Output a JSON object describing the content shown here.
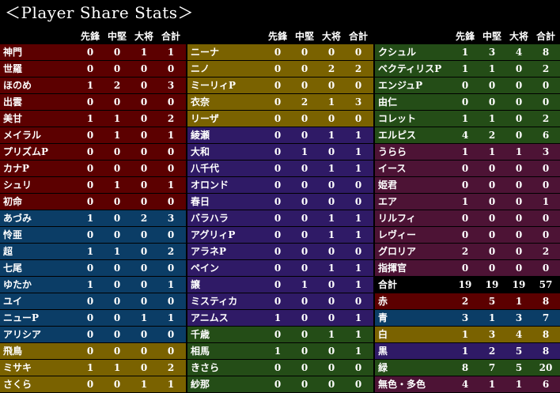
{
  "title": "＜Player Share Stats＞",
  "headers": [
    "先鋒",
    "中堅",
    "大将",
    "合計"
  ],
  "colors": {
    "red": "#5c0000",
    "blue": "#0b3d66",
    "yellow": "#7a6200",
    "purple": "#2f1a66",
    "green": "#244d17",
    "magenta": "#4d1335",
    "black": "#000000"
  },
  "panels": [
    {
      "rows": [
        {
          "name": "神門",
          "v": [
            "0",
            "0",
            "1",
            "1"
          ],
          "color": "red"
        },
        {
          "name": "世羅",
          "v": [
            "0",
            "0",
            "0",
            "0"
          ],
          "color": "red"
        },
        {
          "name": "ほのめ",
          "v": [
            "1",
            "2",
            "0",
            "3"
          ],
          "color": "red"
        },
        {
          "name": "出雲",
          "v": [
            "0",
            "0",
            "0",
            "0"
          ],
          "color": "red"
        },
        {
          "name": "美甘",
          "v": [
            "1",
            "1",
            "0",
            "2"
          ],
          "color": "red"
        },
        {
          "name": "メイラル",
          "v": [
            "0",
            "1",
            "0",
            "1"
          ],
          "color": "red"
        },
        {
          "name": "プリズムP",
          "v": [
            "0",
            "0",
            "0",
            "0"
          ],
          "color": "red"
        },
        {
          "name": "カナP",
          "v": [
            "0",
            "0",
            "0",
            "0"
          ],
          "color": "red"
        },
        {
          "name": "シュリ",
          "v": [
            "0",
            "1",
            "0",
            "1"
          ],
          "color": "red"
        },
        {
          "name": "初命",
          "v": [
            "0",
            "0",
            "0",
            "0"
          ],
          "color": "red"
        },
        {
          "name": "あづみ",
          "v": [
            "1",
            "0",
            "2",
            "3"
          ],
          "color": "blue"
        },
        {
          "name": "怜亜",
          "v": [
            "0",
            "0",
            "0",
            "0"
          ],
          "color": "blue"
        },
        {
          "name": "超",
          "v": [
            "1",
            "1",
            "0",
            "2"
          ],
          "color": "blue"
        },
        {
          "name": "七尾",
          "v": [
            "0",
            "0",
            "0",
            "0"
          ],
          "color": "blue"
        },
        {
          "name": "ゆたか",
          "v": [
            "1",
            "0",
            "0",
            "1"
          ],
          "color": "blue"
        },
        {
          "name": "ユイ",
          "v": [
            "0",
            "0",
            "0",
            "0"
          ],
          "color": "blue"
        },
        {
          "name": "ニューP",
          "v": [
            "0",
            "0",
            "1",
            "1"
          ],
          "color": "blue"
        },
        {
          "name": "アリシア",
          "v": [
            "0",
            "0",
            "0",
            "0"
          ],
          "color": "blue"
        },
        {
          "name": "飛鳥",
          "v": [
            "0",
            "0",
            "0",
            "0"
          ],
          "color": "yellow"
        },
        {
          "name": "ミサキ",
          "v": [
            "1",
            "1",
            "0",
            "2"
          ],
          "color": "yellow"
        },
        {
          "name": "さくら",
          "v": [
            "0",
            "0",
            "1",
            "1"
          ],
          "color": "yellow"
        }
      ]
    },
    {
      "rows": [
        {
          "name": "ニーナ",
          "v": [
            "0",
            "0",
            "0",
            "0"
          ],
          "color": "yellow"
        },
        {
          "name": "ニノ",
          "v": [
            "0",
            "0",
            "2",
            "2"
          ],
          "color": "yellow"
        },
        {
          "name": "ミーリィP",
          "v": [
            "0",
            "0",
            "0",
            "0"
          ],
          "color": "yellow"
        },
        {
          "name": "衣奈",
          "v": [
            "0",
            "2",
            "1",
            "3"
          ],
          "color": "yellow"
        },
        {
          "name": "リーザ",
          "v": [
            "0",
            "0",
            "0",
            "0"
          ],
          "color": "yellow"
        },
        {
          "name": "綾瀬",
          "v": [
            "0",
            "0",
            "1",
            "1"
          ],
          "color": "purple"
        },
        {
          "name": "大和",
          "v": [
            "0",
            "1",
            "0",
            "1"
          ],
          "color": "purple"
        },
        {
          "name": "八千代",
          "v": [
            "0",
            "0",
            "1",
            "1"
          ],
          "color": "purple"
        },
        {
          "name": "オロンド",
          "v": [
            "0",
            "0",
            "0",
            "0"
          ],
          "color": "purple"
        },
        {
          "name": "春日",
          "v": [
            "0",
            "0",
            "0",
            "0"
          ],
          "color": "purple"
        },
        {
          "name": "バラハラ",
          "v": [
            "0",
            "0",
            "1",
            "1"
          ],
          "color": "purple"
        },
        {
          "name": "アグリィP",
          "v": [
            "0",
            "0",
            "1",
            "1"
          ],
          "color": "purple"
        },
        {
          "name": "アラネP",
          "v": [
            "0",
            "0",
            "0",
            "0"
          ],
          "color": "purple"
        },
        {
          "name": "ペイン",
          "v": [
            "0",
            "0",
            "1",
            "1"
          ],
          "color": "purple"
        },
        {
          "name": "譲",
          "v": [
            "0",
            "1",
            "0",
            "1"
          ],
          "color": "purple"
        },
        {
          "name": "ミスティカ",
          "v": [
            "0",
            "0",
            "0",
            "0"
          ],
          "color": "purple"
        },
        {
          "name": "アニムス",
          "v": [
            "1",
            "0",
            "0",
            "1"
          ],
          "color": "purple"
        },
        {
          "name": "千歳",
          "v": [
            "0",
            "0",
            "1",
            "1"
          ],
          "color": "green"
        },
        {
          "name": "相馬",
          "v": [
            "1",
            "0",
            "0",
            "1"
          ],
          "color": "green"
        },
        {
          "name": "きさら",
          "v": [
            "0",
            "0",
            "0",
            "0"
          ],
          "color": "green"
        },
        {
          "name": "紗那",
          "v": [
            "0",
            "0",
            "0",
            "0"
          ],
          "color": "green"
        }
      ]
    },
    {
      "rows": [
        {
          "name": "クシュル",
          "v": [
            "1",
            "3",
            "4",
            "8"
          ],
          "color": "green"
        },
        {
          "name": "ベクティリスP",
          "v": [
            "1",
            "1",
            "0",
            "2"
          ],
          "color": "green"
        },
        {
          "name": "エンジュP",
          "v": [
            "0",
            "0",
            "0",
            "0"
          ],
          "color": "green"
        },
        {
          "name": "由仁",
          "v": [
            "0",
            "0",
            "0",
            "0"
          ],
          "color": "green"
        },
        {
          "name": "コレット",
          "v": [
            "1",
            "1",
            "0",
            "2"
          ],
          "color": "green"
        },
        {
          "name": "エルピス",
          "v": [
            "4",
            "2",
            "0",
            "6"
          ],
          "color": "green"
        },
        {
          "name": "うらら",
          "v": [
            "1",
            "1",
            "1",
            "3"
          ],
          "color": "magenta"
        },
        {
          "name": "イース",
          "v": [
            "0",
            "0",
            "0",
            "0"
          ],
          "color": "magenta"
        },
        {
          "name": "姫君",
          "v": [
            "0",
            "0",
            "0",
            "0"
          ],
          "color": "magenta"
        },
        {
          "name": "エア",
          "v": [
            "1",
            "0",
            "0",
            "1"
          ],
          "color": "magenta"
        },
        {
          "name": "リルフィ",
          "v": [
            "0",
            "0",
            "0",
            "0"
          ],
          "color": "magenta"
        },
        {
          "name": "レヴィー",
          "v": [
            "0",
            "0",
            "0",
            "0"
          ],
          "color": "magenta"
        },
        {
          "name": "グロリア",
          "v": [
            "2",
            "0",
            "0",
            "2"
          ],
          "color": "magenta"
        },
        {
          "name": "指揮官",
          "v": [
            "0",
            "0",
            "0",
            "0"
          ],
          "color": "magenta"
        },
        {
          "name": "合計",
          "v": [
            "19",
            "19",
            "19",
            "57"
          ],
          "color": "black"
        },
        {
          "name": "赤",
          "v": [
            "2",
            "5",
            "1",
            "8"
          ],
          "color": "red"
        },
        {
          "name": "青",
          "v": [
            "3",
            "1",
            "3",
            "7"
          ],
          "color": "blue"
        },
        {
          "name": "白",
          "v": [
            "1",
            "3",
            "4",
            "8"
          ],
          "color": "yellow"
        },
        {
          "name": "黒",
          "v": [
            "1",
            "2",
            "5",
            "8"
          ],
          "color": "purple"
        },
        {
          "name": "緑",
          "v": [
            "8",
            "7",
            "5",
            "20"
          ],
          "color": "green"
        },
        {
          "name": "無色・多色",
          "v": [
            "4",
            "1",
            "1",
            "6"
          ],
          "color": "magenta"
        }
      ]
    }
  ]
}
